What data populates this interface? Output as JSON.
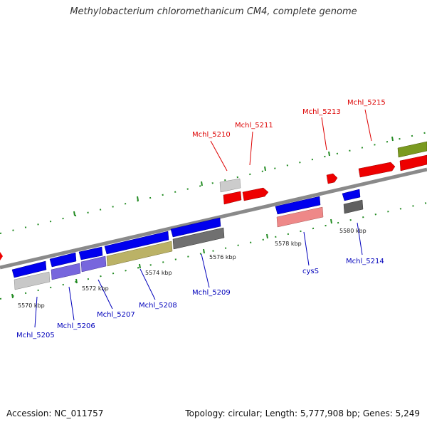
{
  "title": "Methylobacterium chloromethanicum CM4, complete genome",
  "footer": {
    "accession": "Accession: NC_011757",
    "summary": "Topology: circular; Length: 5,777,908 bp; Genes: 5,249"
  },
  "colors": {
    "forward_label": "#dd0000",
    "reverse_label": "#0000bb",
    "backbone": "#8a8a8a",
    "tick": "#228b22"
  },
  "kbp_labels": [
    "5570 kbp",
    "5572 kbp",
    "5574 kbp",
    "5576 kbp",
    "5578 kbp",
    "5580 kbp"
  ],
  "gene_labels": [
    {
      "text": "Mchl_5205",
      "strand": "reverse"
    },
    {
      "text": "Mchl_5206",
      "strand": "reverse"
    },
    {
      "text": "Mchl_5207",
      "strand": "reverse"
    },
    {
      "text": "Mchl_5208",
      "strand": "reverse"
    },
    {
      "text": "Mchl_5209",
      "strand": "reverse"
    },
    {
      "text": "cysS",
      "strand": "reverse"
    },
    {
      "text": "Mchl_5214",
      "strand": "reverse"
    },
    {
      "text": "Mchl_5210",
      "strand": "forward"
    },
    {
      "text": "Mchl_5211",
      "strand": "forward"
    },
    {
      "text": "Mchl_5213",
      "strand": "forward"
    },
    {
      "text": "Mchl_5215",
      "strand": "forward"
    }
  ]
}
